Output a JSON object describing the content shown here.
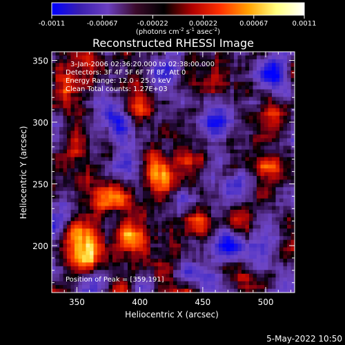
{
  "chart_data": {
    "type": "heatmap",
    "title": "Reconstructed RHESSI Image",
    "xlabel": "Heliocentric X (arcsec)",
    "ylabel": "Heliocentric Y (arcsec)",
    "xlim": [
      330,
      523
    ],
    "ylim": [
      162,
      357
    ],
    "x_ticks": [
      350,
      400,
      450,
      500
    ],
    "y_ticks": [
      200,
      250,
      300,
      350
    ],
    "colorbar": {
      "min": -0.0011,
      "max": 0.0011,
      "ticks": [
        "-0.0011",
        "-0.00067",
        "-0.00022",
        "0.00022",
        "0.00067",
        "0.0011"
      ],
      "label_main": "(photons cm",
      "label_exp1": "-2",
      "label_mid1": " s",
      "label_exp2": "-1",
      "label_mid2": " asec",
      "label_exp3": "-2",
      "label_end": ")",
      "colors": [
        "#0000ff",
        "#3a1fb0",
        "#6b3fc0",
        "#3a0a2a",
        "#000000",
        "#b00000",
        "#ff3000",
        "#ffa000",
        "#ffff80",
        "#ffffff"
      ]
    },
    "info_lines": [
      "3-Jan-2006 02:36:20.000 to 02:38:00.000",
      "Detectors: 3F 4F 5F 6F 7F 8F, Att 0",
      "Energy Range: 12.0 - 25.0 keV",
      "Clean    Total counts: 1.27E+03"
    ],
    "peak_label": "Position of Peak = [359,191]",
    "peak": [
      359,
      191
    ],
    "bright_sources": [
      {
        "x": 359,
        "y": 191,
        "level": 1.0
      },
      {
        "x": 352,
        "y": 210,
        "level": 0.8
      },
      {
        "x": 395,
        "y": 205,
        "level": 0.75
      },
      {
        "x": 410,
        "y": 262,
        "level": 0.7
      },
      {
        "x": 420,
        "y": 250,
        "level": 0.65
      },
      {
        "x": 380,
        "y": 240,
        "level": 0.55
      },
      {
        "x": 445,
        "y": 215,
        "level": 0.6
      },
      {
        "x": 478,
        "y": 215,
        "level": 0.7
      },
      {
        "x": 340,
        "y": 330,
        "level": 0.55
      },
      {
        "x": 360,
        "y": 345,
        "level": 0.5
      },
      {
        "x": 435,
        "y": 270,
        "level": 0.5
      },
      {
        "x": 500,
        "y": 265,
        "level": 0.5
      },
      {
        "x": 505,
        "y": 305,
        "level": 0.45
      },
      {
        "x": 400,
        "y": 310,
        "level": 0.45
      },
      {
        "x": 460,
        "y": 335,
        "level": 0.4
      },
      {
        "x": 350,
        "y": 280,
        "level": 0.4
      },
      {
        "x": 420,
        "y": 180,
        "level": 0.45
      },
      {
        "x": 480,
        "y": 175,
        "level": 0.4
      }
    ],
    "dim_sources": [
      {
        "x": 470,
        "y": 205,
        "level": -0.9
      },
      {
        "x": 505,
        "y": 340,
        "level": -0.7
      },
      {
        "x": 380,
        "y": 300,
        "level": -0.6
      },
      {
        "x": 460,
        "y": 300,
        "level": -0.55
      },
      {
        "x": 430,
        "y": 240,
        "level": -0.5
      },
      {
        "x": 390,
        "y": 270,
        "level": -0.5
      },
      {
        "x": 480,
        "y": 250,
        "level": -0.55
      },
      {
        "x": 340,
        "y": 225,
        "level": -0.45
      },
      {
        "x": 440,
        "y": 180,
        "level": -0.45
      },
      {
        "x": 500,
        "y": 195,
        "level": -0.5
      },
      {
        "x": 420,
        "y": 340,
        "level": -0.5
      },
      {
        "x": 365,
        "y": 175,
        "level": -0.4
      }
    ]
  },
  "footer_date": "5-May-2022 10:50"
}
